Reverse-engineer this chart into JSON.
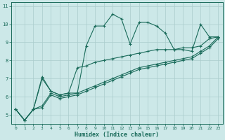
{
  "xlabel": "Humidex (Indice chaleur)",
  "bg_color": "#cce8e8",
  "grid_color": "#aacccc",
  "line_color": "#1a6b5a",
  "xlim": [
    -0.5,
    23.5
  ],
  "ylim": [
    4.5,
    11.2
  ],
  "yticks": [
    5,
    6,
    7,
    8,
    9,
    10,
    11
  ],
  "xticks": [
    0,
    1,
    2,
    3,
    4,
    5,
    6,
    7,
    8,
    9,
    10,
    11,
    12,
    13,
    14,
    15,
    16,
    17,
    18,
    19,
    20,
    21,
    22,
    23
  ],
  "series": [
    [
      5.3,
      4.7,
      5.3,
      7.1,
      6.3,
      6.1,
      6.2,
      6.2,
      8.8,
      9.9,
      9.9,
      10.55,
      10.3,
      8.9,
      10.1,
      10.1,
      9.9,
      9.5,
      8.6,
      8.6,
      8.5,
      10.0,
      9.3,
      9.3
    ],
    [
      5.3,
      4.7,
      5.3,
      7.0,
      6.3,
      6.1,
      6.2,
      7.6,
      7.7,
      7.9,
      8.0,
      8.1,
      8.2,
      8.3,
      8.4,
      8.5,
      8.6,
      8.6,
      8.6,
      8.7,
      8.7,
      8.8,
      9.2,
      9.3
    ],
    [
      5.3,
      4.7,
      5.3,
      5.5,
      6.2,
      6.0,
      6.1,
      6.2,
      6.4,
      6.6,
      6.8,
      7.0,
      7.2,
      7.4,
      7.6,
      7.7,
      7.8,
      7.9,
      8.0,
      8.1,
      8.2,
      8.5,
      8.8,
      9.3
    ],
    [
      5.3,
      4.7,
      5.3,
      5.4,
      6.1,
      5.9,
      6.0,
      6.1,
      6.3,
      6.5,
      6.7,
      6.9,
      7.1,
      7.3,
      7.5,
      7.6,
      7.7,
      7.8,
      7.9,
      8.0,
      8.1,
      8.4,
      8.7,
      9.2
    ]
  ]
}
